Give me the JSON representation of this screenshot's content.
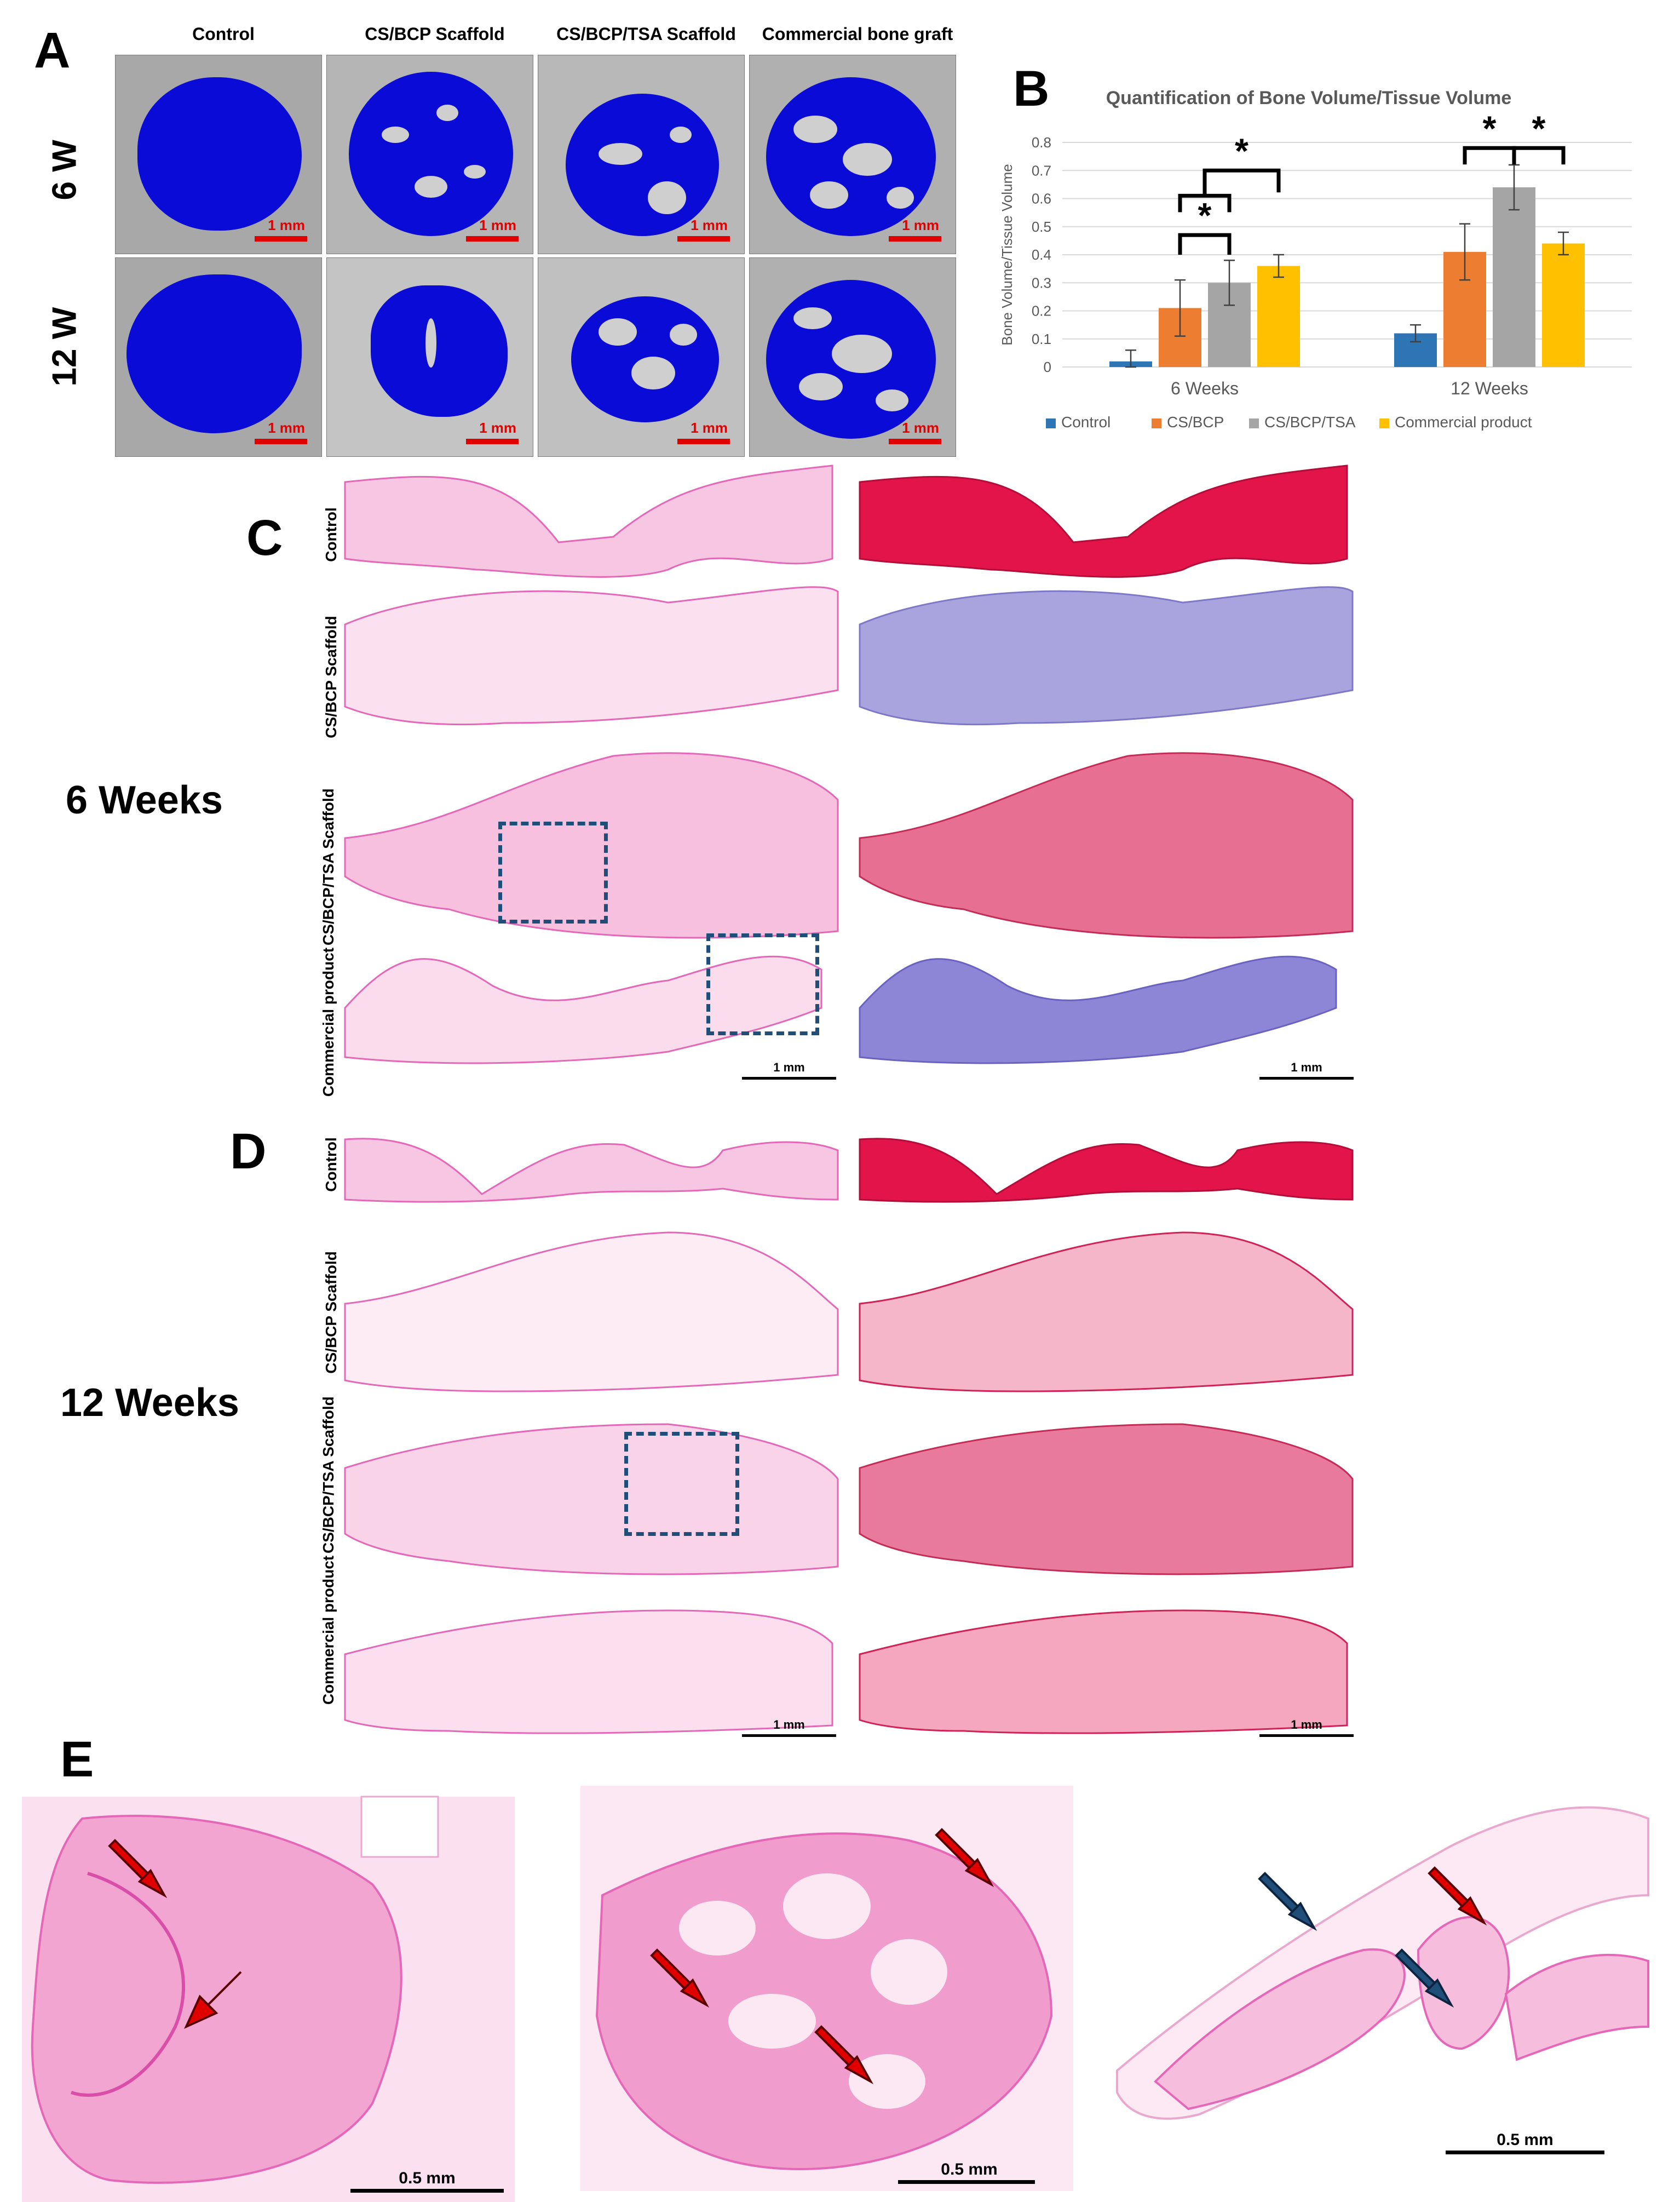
{
  "panels": {
    "A": "A",
    "B": "B",
    "C": "C",
    "D": "D",
    "E": "E"
  },
  "panel_a": {
    "columns": [
      "Control",
      "CS/BCP Scaffold",
      "CS/BCP/TSA Scaffold",
      "Commercial bone graft"
    ],
    "rows": [
      "6 W",
      "12 W"
    ],
    "scale_label": "1 mm",
    "colors": {
      "defect": "#0a0bd6",
      "bone": "#c8c8c8",
      "scale": "#e00000"
    }
  },
  "chart_data": {
    "type": "bar",
    "title": "Quantification of Bone Volume/Tissue Volume",
    "ylabel": "Bone Volume/Tissue Volume",
    "xlabel": "",
    "categories": [
      "6 Weeks",
      "12 Weeks"
    ],
    "ylim": [
      0,
      0.8
    ],
    "yticks": [
      "0",
      "0.1",
      "0.2",
      "0.3",
      "0.4",
      "0.5",
      "0.6",
      "0.7",
      "0.8"
    ],
    "grid": true,
    "legend_position": "bottom",
    "series": [
      {
        "name": "Control",
        "color": "#2e75b6",
        "values": [
          0.02,
          0.12
        ],
        "errors": [
          0.04,
          0.03
        ]
      },
      {
        "name": "CS/BCP",
        "color": "#ed7d31",
        "values": [
          0.21,
          0.41
        ],
        "errors": [
          0.1,
          0.1
        ]
      },
      {
        "name": "CS/BCP/TSA",
        "color": "#a5a5a5",
        "values": [
          0.3,
          0.64
        ],
        "errors": [
          0.08,
          0.08
        ]
      },
      {
        "name": "Commercial product",
        "color": "#ffc000",
        "values": [
          0.36,
          0.44
        ],
        "errors": [
          0.04,
          0.04
        ]
      }
    ],
    "significance_marker": "*"
  },
  "panel_c": {
    "week_label": "6 Weeks",
    "rows": [
      "Control",
      "CS/BCP Scaffold",
      "CS/BCP/TSA Scaffold",
      "Commercial product"
    ],
    "scale_label": "1 mm"
  },
  "panel_d": {
    "week_label": "12 Weeks",
    "rows": [
      "Control",
      "CS/BCP Scaffold",
      "CS/BCP/TSA Scaffold",
      "Commercial product"
    ],
    "scale_label": "1 mm"
  },
  "panel_e": {
    "scale_label": "0.5 mm",
    "colors": {
      "new_bone_arrow": "#e00000",
      "arrow_blue": "#1f4e79"
    }
  },
  "stain_colors": {
    "he_light": "#f7c6e2",
    "he_dark": "#e467b8",
    "mt_red": "#e2144a",
    "mt_blue": "#8d86d6"
  }
}
